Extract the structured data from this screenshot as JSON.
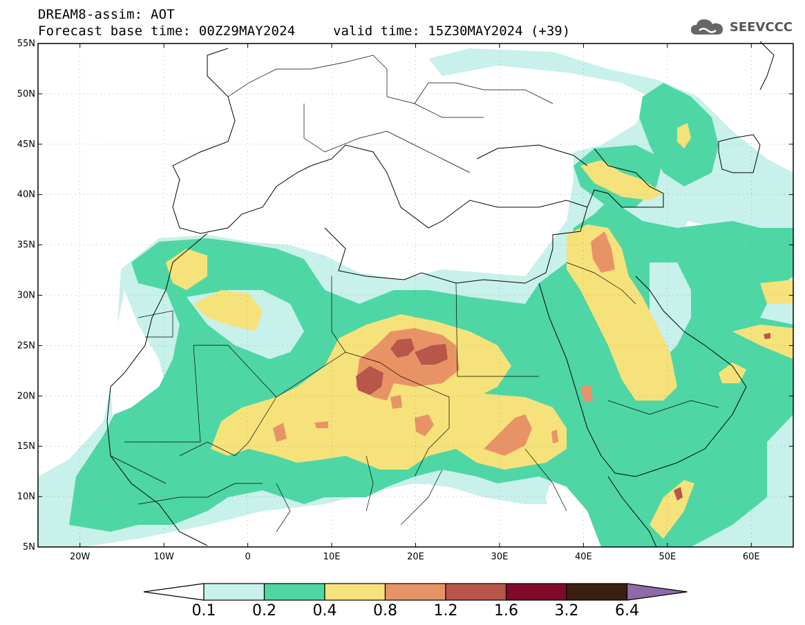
{
  "title": {
    "line1": "DREAM8-assim: AOT",
    "line2": "Forecast base time: 00Z29MAY2024",
    "valid": "valid time: 15Z30MAY2024 (+39)"
  },
  "logo": {
    "text": "SEEVCCC",
    "icon": "cloud-icon"
  },
  "map": {
    "lon_range": [
      -25,
      65
    ],
    "lat_range": [
      5,
      55
    ],
    "lon_ticks": [
      {
        "value": -20,
        "label": "20W"
      },
      {
        "value": -10,
        "label": "10W"
      },
      {
        "value": 0,
        "label": "0"
      },
      {
        "value": 10,
        "label": "10E"
      },
      {
        "value": 20,
        "label": "20E"
      },
      {
        "value": 30,
        "label": "30E"
      },
      {
        "value": 40,
        "label": "40E"
      },
      {
        "value": 50,
        "label": "50E"
      },
      {
        "value": 60,
        "label": "60E"
      }
    ],
    "lat_ticks": [
      {
        "value": 5,
        "label": "5N"
      },
      {
        "value": 10,
        "label": "10N"
      },
      {
        "value": 15,
        "label": "15N"
      },
      {
        "value": 20,
        "label": "20N"
      },
      {
        "value": 25,
        "label": "25N"
      },
      {
        "value": 30,
        "label": "30N"
      },
      {
        "value": 35,
        "label": "35N"
      },
      {
        "value": 40,
        "label": "40N"
      },
      {
        "value": 45,
        "label": "45N"
      },
      {
        "value": 50,
        "label": "50N"
      },
      {
        "value": 55,
        "label": "55N"
      }
    ],
    "grid": true
  },
  "colorbar": {
    "levels": [
      "0.1",
      "0.2",
      "0.4",
      "0.8",
      "1.2",
      "1.6",
      "3.2",
      "6.4"
    ],
    "colors": [
      "#ffffff",
      "#c7f1ea",
      "#4fd6a5",
      "#f6e27a",
      "#e89366",
      "#b8564a",
      "#7f0a2a",
      "#3b2012",
      "#8e6aa8"
    ]
  }
}
